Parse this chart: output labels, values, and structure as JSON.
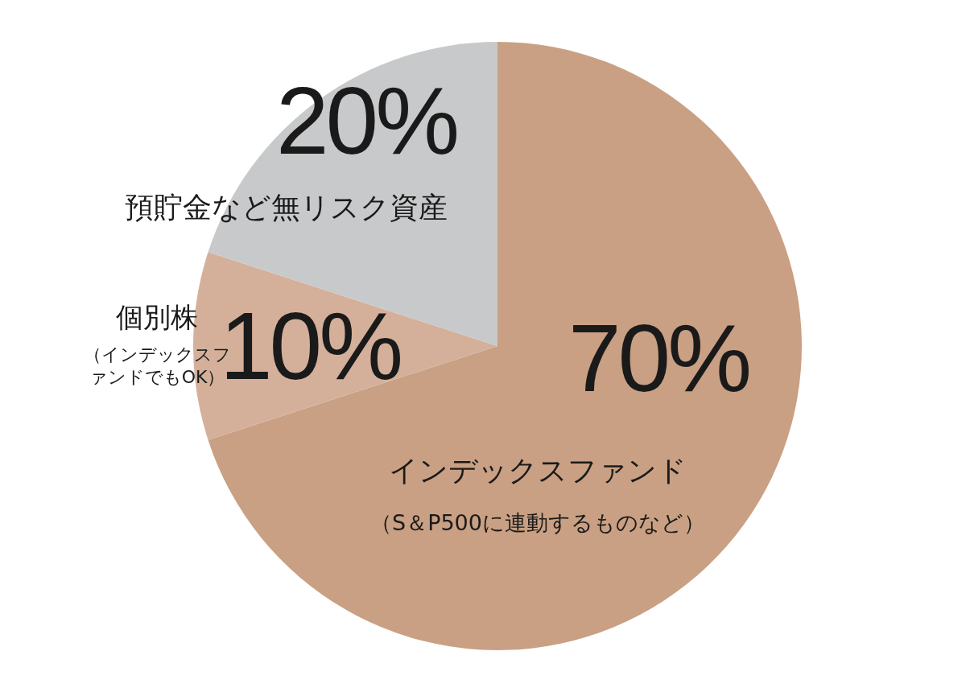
{
  "chart_data": {
    "type": "pie",
    "categories": [
      "インデックスファンド",
      "個別株",
      "預貯金など無リスク資産"
    ],
    "values": [
      70,
      10,
      20
    ],
    "colors": [
      "#c9a083",
      "#d4b09b",
      "#c8c9ca"
    ],
    "value_labels": [
      "70%",
      "10%",
      "20%"
    ],
    "annotations": [
      "（S＆P500に連動するものなど）",
      "（インデックスファンドでもOK）"
    ]
  }
}
